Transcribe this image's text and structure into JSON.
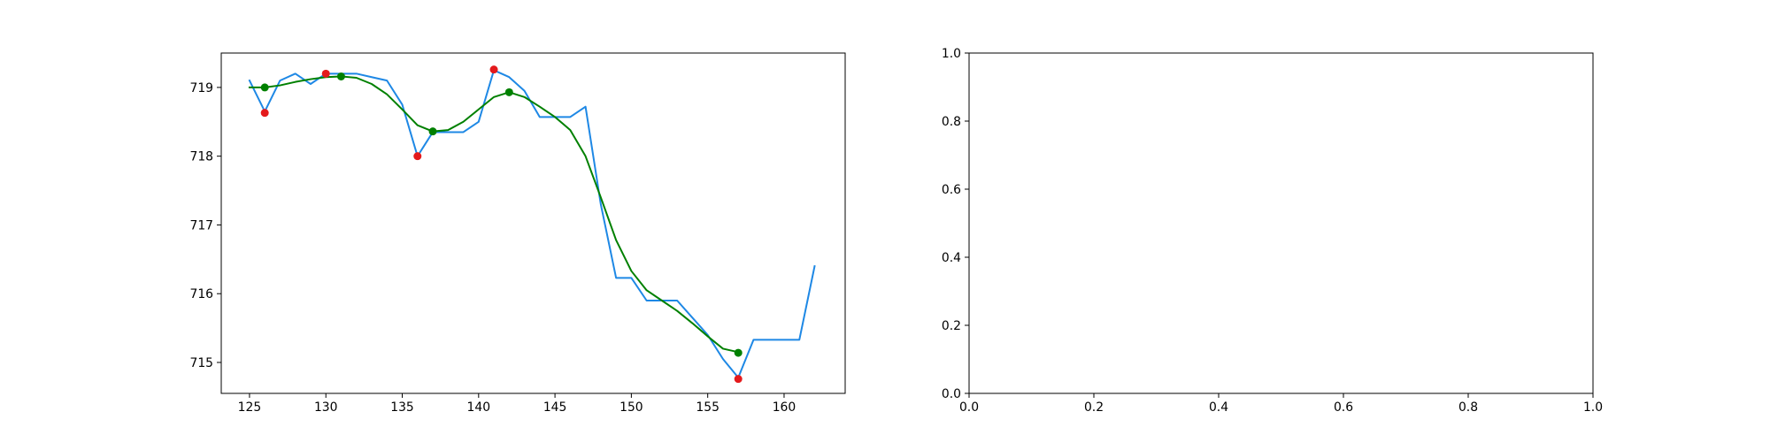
{
  "chart_data": [
    {
      "type": "line",
      "title": "",
      "xlabel": "",
      "ylabel": "",
      "xlim": [
        123.15,
        164.0
      ],
      "ylim": [
        714.55,
        719.5
      ],
      "xticks": [
        125,
        130,
        135,
        140,
        145,
        150,
        155,
        160
      ],
      "yticks": [
        715,
        716,
        717,
        718,
        719
      ],
      "grid": false,
      "series": [
        {
          "type": "line",
          "color": "#1e88e5",
          "x": [
            125,
            126,
            127,
            128,
            129,
            130,
            131,
            132,
            133,
            134,
            135,
            136,
            137,
            138,
            139,
            140,
            141,
            142,
            143,
            144,
            145,
            146,
            147,
            148,
            149,
            150,
            151,
            152,
            153,
            154,
            155,
            156,
            157,
            158,
            159,
            160,
            161,
            162
          ],
          "y": [
            719.1,
            718.65,
            719.1,
            719.2,
            719.05,
            719.2,
            719.2,
            719.2,
            719.15,
            719.1,
            718.75,
            718.0,
            718.35,
            718.35,
            718.35,
            718.5,
            719.25,
            719.15,
            718.95,
            718.57,
            718.57,
            718.57,
            718.72,
            717.3,
            716.23,
            716.23,
            715.9,
            715.9,
            715.9,
            715.65,
            715.4,
            715.05,
            714.78,
            715.33,
            715.33,
            715.33,
            715.33,
            716.4
          ]
        },
        {
          "type": "line",
          "color": "#008000",
          "x": [
            125,
            126,
            127,
            128,
            129,
            130,
            131,
            132,
            133,
            134,
            135,
            136,
            137,
            138,
            139,
            140,
            141,
            142,
            143,
            144,
            145,
            146,
            147,
            148,
            149,
            150,
            151,
            152,
            153,
            154,
            155,
            156,
            157
          ],
          "y": [
            719.0,
            719.0,
            719.03,
            719.08,
            719.12,
            719.15,
            719.16,
            719.14,
            719.05,
            718.9,
            718.68,
            718.45,
            718.36,
            718.38,
            718.5,
            718.68,
            718.86,
            718.93,
            718.86,
            718.72,
            718.57,
            718.38,
            718.0,
            717.4,
            716.78,
            716.33,
            716.05,
            715.9,
            715.75,
            715.57,
            715.38,
            715.2,
            715.15
          ]
        },
        {
          "type": "scatter",
          "color": "#e41a1c",
          "x": [
            126,
            130,
            136,
            141,
            157
          ],
          "y": [
            718.63,
            719.2,
            718.0,
            719.26,
            714.76
          ]
        },
        {
          "type": "scatter",
          "color": "#008000",
          "x": [
            126,
            131,
            137,
            142,
            157
          ],
          "y": [
            719.0,
            719.16,
            718.36,
            718.93,
            715.14
          ]
        }
      ]
    },
    {
      "type": "line",
      "title": "",
      "xlabel": "",
      "ylabel": "",
      "xlim": [
        0.0,
        1.0
      ],
      "ylim": [
        0.0,
        1.0
      ],
      "xticks": [
        0.0,
        0.2,
        0.4,
        0.6,
        0.8,
        1.0
      ],
      "yticks": [
        0.0,
        0.2,
        0.4,
        0.6,
        0.8,
        1.0
      ],
      "xtick_labels": [
        "0.0",
        "0.2",
        "0.4",
        "0.6",
        "0.8",
        "1.0"
      ],
      "ytick_labels": [
        "0.0",
        "0.2",
        "0.4",
        "0.6",
        "0.8",
        "1.0"
      ],
      "grid": false,
      "series": []
    }
  ]
}
